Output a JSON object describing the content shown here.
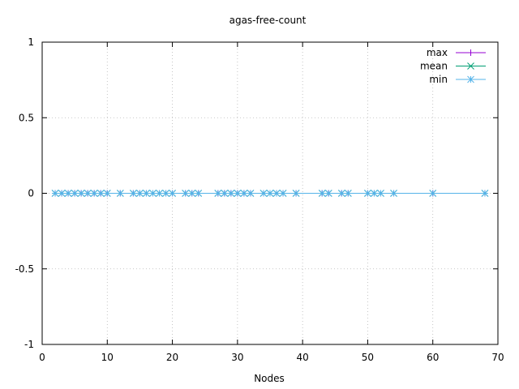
{
  "chart_data": {
    "type": "line",
    "title": "agas-free-count",
    "xlabel": "Nodes",
    "ylabel": "",
    "xlim": [
      0,
      70
    ],
    "ylim": [
      -1,
      1
    ],
    "xticks": [
      0,
      10,
      20,
      30,
      40,
      50,
      60,
      70
    ],
    "yticks": [
      -1,
      -0.5,
      0,
      0.5,
      1
    ],
    "xtick_labels": [
      "0",
      "10",
      "20",
      "30",
      "40",
      "50",
      "60",
      "70"
    ],
    "ytick_labels": [
      "-1",
      "-0.5",
      "0",
      "0.5",
      "1"
    ],
    "grid": true,
    "legend_position": "top-right",
    "x": [
      2,
      3,
      4,
      5,
      6,
      7,
      8,
      9,
      10,
      12,
      14,
      15,
      16,
      17,
      18,
      19,
      20,
      22,
      23,
      24,
      27,
      28,
      29,
      30,
      31,
      32,
      34,
      35,
      36,
      37,
      39,
      43,
      44,
      46,
      47,
      50,
      51,
      52,
      54,
      60,
      68
    ],
    "series": [
      {
        "name": "max",
        "color": "#9400d3",
        "marker": "plus"
      },
      {
        "name": "mean",
        "color": "#009e73",
        "marker": "cross"
      },
      {
        "name": "min",
        "color": "#56b4e9",
        "marker": "star"
      }
    ],
    "y_value": 0
  }
}
